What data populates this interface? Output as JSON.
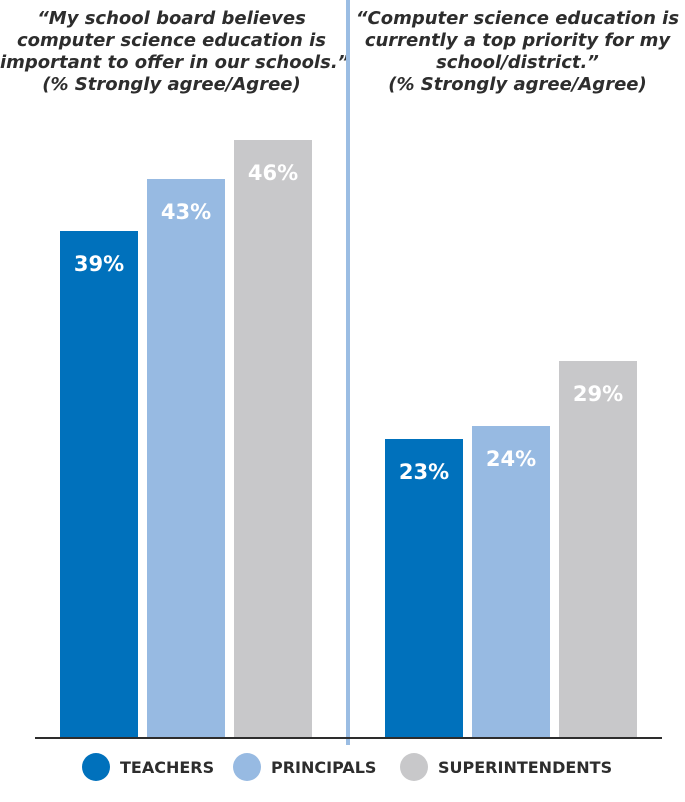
{
  "chart_data": {
    "type": "bar",
    "panels": [
      {
        "title_lines": [
          "“My school board believes",
          "computer science education is",
          "important to offer in our schools.”",
          "(% Strongly agree/Agree)"
        ],
        "values": [
          39,
          43,
          46
        ],
        "labels": [
          "39%",
          "43%",
          "46%"
        ]
      },
      {
        "title_lines": [
          "“Computer science education is",
          "currently a top priority for my",
          "school/district.”",
          "(% Strongly agree/Agree)"
        ],
        "values": [
          23,
          24,
          29
        ],
        "labels": [
          "23%",
          "24%",
          "29%"
        ]
      }
    ],
    "series": [
      {
        "name": "TEACHERS",
        "color": "#0071bc"
      },
      {
        "name": "PRINCIPALS",
        "color": "#97bae2"
      },
      {
        "name": "SUPERINTENDENTS",
        "color": "#c8c8ca"
      }
    ],
    "ylim": [
      0,
      46
    ]
  }
}
